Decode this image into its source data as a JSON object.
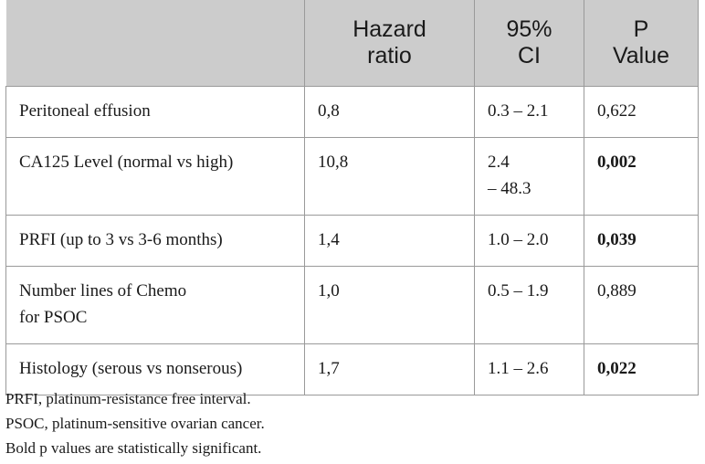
{
  "table": {
    "headers": [
      "",
      "Hazard\nratio",
      "95%\nCI",
      "P\nValue"
    ],
    "rows": [
      {
        "variable": "Peritoneal effusion",
        "hr": "0,8",
        "ci": "0.3 – 2.1",
        "p": "0,622",
        "bold": false
      },
      {
        "variable": "CA125 Level (normal vs high)",
        "hr": "10,8",
        "ci": "2.4\n– 48.3",
        "p": "0,002",
        "bold": true
      },
      {
        "variable": "PRFI (up to 3 vs 3-6 months)",
        "hr": "1,4",
        "ci": "1.0 – 2.0",
        "p": "0,039",
        "bold": true
      },
      {
        "variable": "Number lines of Chemo\nfor PSOC",
        "hr": "1,0",
        "ci": "0.5 – 1.9",
        "p": "0,889",
        "bold": false
      },
      {
        "variable": "Histology (serous vs nonserous)",
        "hr": "1,7",
        "ci": "1.1 – 2.6",
        "p": "0,022",
        "bold": true
      }
    ]
  },
  "notes": [
    "PRFI, platinum-resistance free interval.",
    "PSOC, platinum-sensitive ovarian cancer.",
    "Bold p values are statistically significant."
  ],
  "colors": {
    "header_bg": "#cccccc",
    "border": "#9a9a9a",
    "text": "#1a1a1a"
  }
}
